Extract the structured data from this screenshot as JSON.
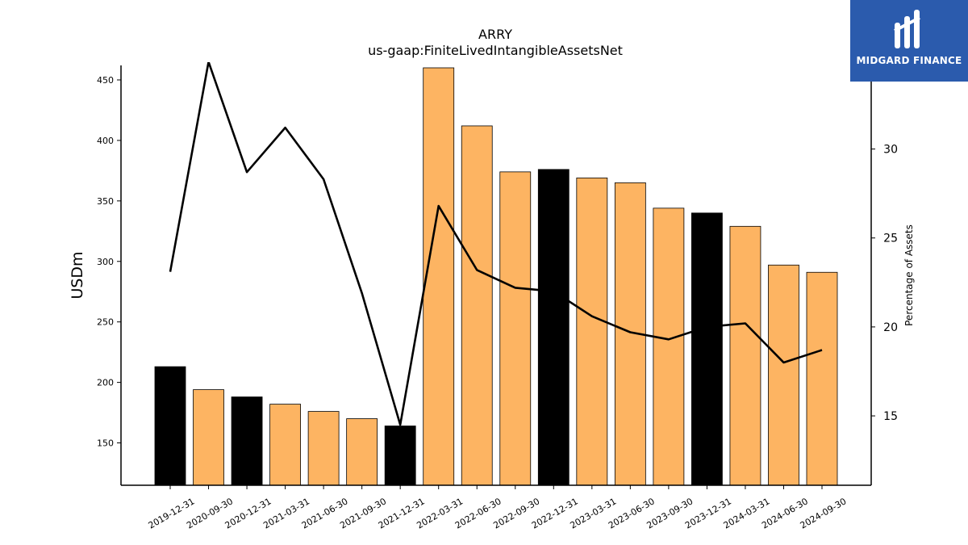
{
  "brand": {
    "name": "MIDGARD FINANCE",
    "color": "#2b5bad"
  },
  "chart_data": {
    "type": "bar",
    "title": "ARRY",
    "subtitle": "us-gaap:FiniteLivedIntangibleAssetsNet",
    "ylabel": "USDm",
    "y2label": "Percentage of Assets",
    "categories": [
      "2019-12-31",
      "2020-09-30",
      "2020-12-31",
      "2021-03-31",
      "2021-06-30",
      "2021-09-30",
      "2021-12-31",
      "2022-03-31",
      "2022-06-30",
      "2022-09-30",
      "2022-12-31",
      "2023-03-31",
      "2023-06-30",
      "2023-09-30",
      "2023-12-31",
      "2024-03-31",
      "2024-06-30",
      "2024-09-30"
    ],
    "values": [
      213,
      194,
      188,
      182,
      176,
      170,
      164,
      460,
      412,
      374,
      376,
      369,
      365,
      344,
      340,
      329,
      297,
      291
    ],
    "bar_colors": [
      "#000000",
      "#fdb462",
      "#000000",
      "#fdb462",
      "#fdb462",
      "#fdb462",
      "#000000",
      "#fdb462",
      "#fdb462",
      "#fdb462",
      "#000000",
      "#fdb462",
      "#fdb462",
      "#fdb462",
      "#000000",
      "#fdb462",
      "#fdb462",
      "#fdb462"
    ],
    "line": {
      "axis": "right",
      "color": "#000000",
      "values": [
        23.1,
        34.9,
        28.7,
        31.2,
        28.3,
        21.9,
        14.5,
        26.8,
        23.2,
        22.2,
        22.0,
        20.6,
        19.7,
        19.3,
        20.0,
        20.2,
        18.0,
        18.7
      ]
    },
    "ylim": [
      115,
      462
    ],
    "y2lim": [
      11.1,
      34.7
    ],
    "yticks": [
      150,
      200,
      250,
      300,
      350,
      400,
      450
    ],
    "y2ticks": [
      15,
      20,
      25,
      30
    ],
    "grid": false
  }
}
